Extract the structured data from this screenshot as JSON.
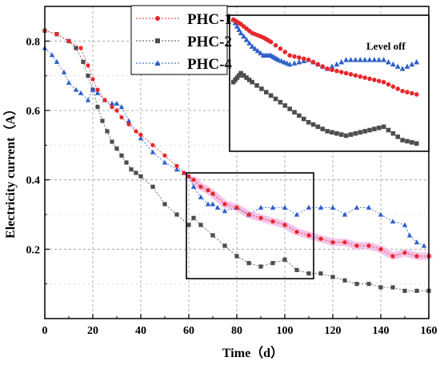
{
  "chart_data": {
    "type": "scatter",
    "title": "",
    "xlabel": "Time（d）",
    "ylabel": "Electricity current（A）",
    "xlim": [
      0,
      160
    ],
    "ylim": [
      0,
      0.9
    ],
    "xticks": [
      "0",
      "20",
      "40",
      "60",
      "80",
      "100",
      "120",
      "140",
      "160"
    ],
    "yticks": [
      "0.2",
      "0.4",
      "0.6",
      "0.8"
    ],
    "grid": true,
    "legend_position": "top-center",
    "series": [
      {
        "name": "PHC-1",
        "color": "#e8272c",
        "marker": "circle",
        "x": [
          0,
          5,
          10,
          15,
          18,
          20,
          22,
          25,
          28,
          30,
          32,
          35,
          38,
          40,
          45,
          50,
          55,
          58,
          60,
          62,
          65,
          68,
          70,
          75,
          80,
          85,
          90,
          95,
          100,
          105,
          110,
          115,
          120,
          125,
          130,
          135,
          140,
          145,
          150,
          155,
          160
        ],
        "y": [
          0.83,
          0.82,
          0.8,
          0.78,
          0.73,
          0.69,
          0.66,
          0.63,
          0.61,
          0.6,
          0.58,
          0.56,
          0.54,
          0.53,
          0.5,
          0.47,
          0.44,
          0.42,
          0.41,
          0.4,
          0.38,
          0.37,
          0.36,
          0.33,
          0.32,
          0.3,
          0.29,
          0.28,
          0.27,
          0.25,
          0.24,
          0.23,
          0.22,
          0.22,
          0.21,
          0.21,
          0.2,
          0.18,
          0.19,
          0.18,
          0.18
        ]
      },
      {
        "name": "PHC-2",
        "color": "#4d4d4d",
        "marker": "square",
        "x": [
          0,
          5,
          10,
          13,
          16,
          18,
          20,
          22,
          24,
          26,
          28,
          30,
          32,
          34,
          36,
          38,
          40,
          45,
          50,
          55,
          60,
          62,
          65,
          70,
          75,
          80,
          85,
          90,
          95,
          100,
          105,
          110,
          115,
          120,
          125,
          130,
          135,
          140,
          145,
          150,
          155,
          160
        ],
        "y": [
          0.83,
          0.82,
          0.8,
          0.78,
          0.74,
          0.7,
          0.66,
          0.61,
          0.57,
          0.54,
          0.51,
          0.49,
          0.47,
          0.45,
          0.43,
          0.42,
          0.41,
          0.38,
          0.33,
          0.3,
          0.27,
          0.29,
          0.27,
          0.24,
          0.21,
          0.18,
          0.16,
          0.15,
          0.16,
          0.17,
          0.14,
          0.13,
          0.13,
          0.12,
          0.11,
          0.1,
          0.1,
          0.09,
          0.09,
          0.08,
          0.08,
          0.08
        ]
      },
      {
        "name": "PHC-4",
        "color": "#2e5fc9",
        "marker": "triangle",
        "x": [
          0,
          3,
          5,
          8,
          10,
          13,
          15,
          18,
          20,
          22,
          25,
          28,
          30,
          32,
          35,
          40,
          45,
          50,
          55,
          58,
          60,
          62,
          65,
          68,
          70,
          72,
          75,
          80,
          85,
          90,
          95,
          100,
          105,
          110,
          115,
          120,
          125,
          130,
          135,
          140,
          145,
          150,
          152,
          155,
          158
        ],
        "y": [
          0.78,
          0.76,
          0.74,
          0.71,
          0.68,
          0.66,
          0.65,
          0.63,
          0.66,
          0.65,
          0.63,
          0.62,
          0.62,
          0.61,
          0.57,
          0.52,
          0.48,
          0.45,
          0.43,
          0.42,
          0.41,
          0.38,
          0.35,
          0.33,
          0.33,
          0.32,
          0.31,
          0.32,
          0.3,
          0.32,
          0.32,
          0.32,
          0.3,
          0.32,
          0.32,
          0.32,
          0.3,
          0.32,
          0.32,
          0.3,
          0.28,
          0.27,
          0.24,
          0.22,
          0.21
        ]
      }
    ],
    "annotations": {
      "inset_label": "Level off"
    }
  }
}
